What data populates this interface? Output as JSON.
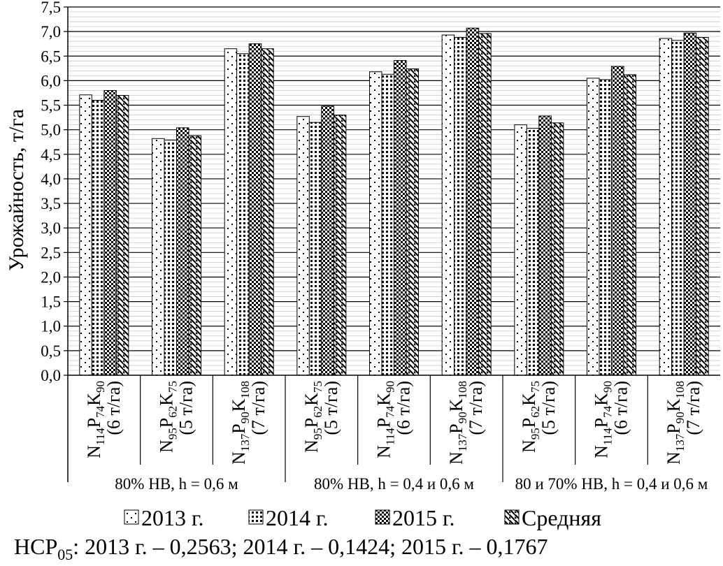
{
  "chart_data": {
    "type": "bar",
    "ylabel": "Урожайность, т/га",
    "ylim": [
      0,
      7.5
    ],
    "yticks": [
      "0,0",
      "0,5",
      "1,0",
      "1,5",
      "2,0",
      "2,5",
      "3,0",
      "3,5",
      "4,0",
      "4,5",
      "5,0",
      "5,5",
      "6,0",
      "6,5",
      "7,0",
      "7,5"
    ],
    "grid": true,
    "legend_position": "bottom",
    "categories": [
      {
        "n": "114",
        "p": "74",
        "k": "90",
        "rate": "(6 т/га)"
      },
      {
        "n": "95",
        "p": "62",
        "k": "75",
        "rate": "(5 т/га)"
      },
      {
        "n": "137",
        "p": "90",
        "k": "108",
        "rate": "(7 т/га)"
      },
      {
        "n": "95",
        "p": "62",
        "k": "75",
        "rate": "(5 т/га)"
      },
      {
        "n": "114",
        "p": "74",
        "k": "90",
        "rate": "(6 т/га)"
      },
      {
        "n": "137",
        "p": "90",
        "k": "108",
        "rate": "(7 т/га)"
      },
      {
        "n": "95",
        "p": "62",
        "k": "75",
        "rate": "(5 т/га)"
      },
      {
        "n": "114",
        "p": "74",
        "k": "90",
        "rate": "(6 т/га)"
      },
      {
        "n": "137",
        "p": "90",
        "k": "108",
        "rate": "(7 т/га)"
      }
    ],
    "groups": [
      "80% НВ, h = 0,6 м",
      "80% НВ, h = 0,4 и 0,6 м",
      "80 и 70% НВ, h = 0,4 и 0,6 м"
    ],
    "series": [
      {
        "name": "2013 г.",
        "values": [
          5.71,
          4.82,
          6.65,
          5.27,
          6.18,
          6.93,
          5.1,
          6.05,
          6.86
        ]
      },
      {
        "name": "2014 г.",
        "values": [
          5.6,
          4.79,
          6.55,
          5.15,
          6.13,
          6.88,
          5.03,
          6.02,
          6.82
        ]
      },
      {
        "name": "2015 г.",
        "values": [
          5.8,
          5.04,
          6.75,
          5.48,
          6.41,
          7.07,
          5.28,
          6.29,
          6.97
        ]
      },
      {
        "name": "Средняя",
        "values": [
          5.7,
          4.88,
          6.65,
          5.3,
          6.24,
          6.96,
          5.14,
          6.12,
          6.88
        ]
      }
    ],
    "footnote": "НСР: 2013 г.  – 0,2563; 2014 г. – 0,1424; 2015 г. – 0,1767",
    "footnote_sub": "05"
  }
}
